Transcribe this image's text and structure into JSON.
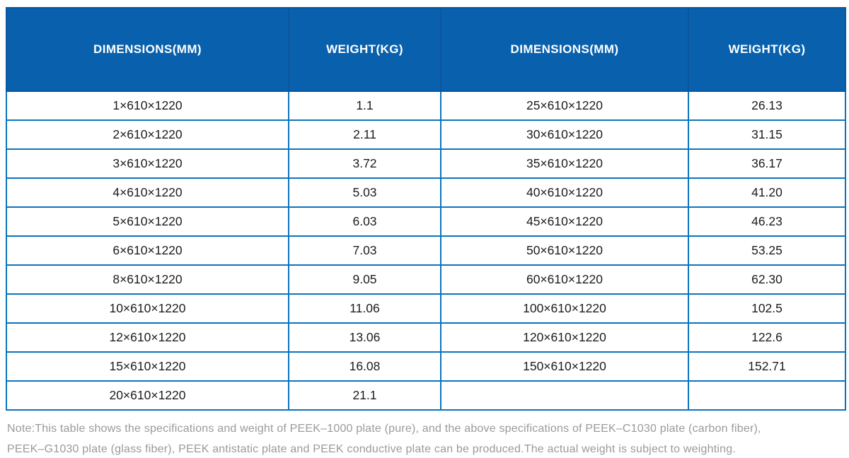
{
  "table": {
    "headers": [
      "DIMENSIONS(MM)",
      "WEIGHT(KG)",
      "DIMENSIONS(MM)",
      "WEIGHT(KG)"
    ],
    "rows": [
      [
        "1×610×1220",
        "1.1",
        "25×610×1220",
        "26.13"
      ],
      [
        "2×610×1220",
        "2.11",
        "30×610×1220",
        "31.15"
      ],
      [
        "3×610×1220",
        "3.72",
        "35×610×1220",
        "36.17"
      ],
      [
        "4×610×1220",
        "5.03",
        "40×610×1220",
        "41.20"
      ],
      [
        "5×610×1220",
        "6.03",
        "45×610×1220",
        "46.23"
      ],
      [
        "6×610×1220",
        "7.03",
        "50×610×1220",
        "53.25"
      ],
      [
        "8×610×1220",
        "9.05",
        "60×610×1220",
        "62.30"
      ],
      [
        "10×610×1220",
        "11.06",
        "100×610×1220",
        "102.5"
      ],
      [
        "12×610×1220",
        "13.06",
        "120×610×1220",
        "122.6"
      ],
      [
        "15×610×1220",
        "16.08",
        "150×610×1220",
        "152.71"
      ],
      [
        "20×610×1220",
        "21.1",
        "",
        ""
      ]
    ]
  },
  "note": {
    "line1": "Note:This table shows the specifications and weight of PEEK–1000 plate (pure), and the above specifications of PEEK–C1030 plate (carbon fiber),",
    "line2": "PEEK–G1030 plate (glass fiber), PEEK antistatic plate and PEEK conductive plate can be produced.The actual weight is subject to weighting."
  },
  "colors": {
    "header_bg": "#0961ad",
    "header_divider": "#0a55a0",
    "grid_border": "#0c74be",
    "cell_text": "#1c1c1c",
    "note_text": "#9a9a9a",
    "page_bg": "#ffffff"
  }
}
